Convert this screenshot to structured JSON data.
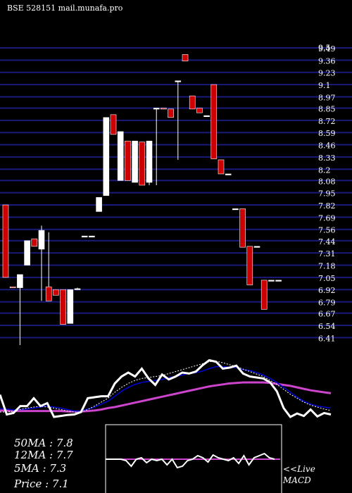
{
  "header": {
    "title": "BSE 528151 mail.munafa.pro"
  },
  "chart_data": {
    "type": "candlestick",
    "y_ticks": [
      "9.5",
      "9.49",
      "9.36",
      "9.23",
      "9.1",
      "8.97",
      "8.85",
      "8.72",
      "8.59",
      "8.46",
      "8.33",
      "8.2",
      "8.08",
      "7.95",
      "7.82",
      "7.69",
      "7.56",
      "7.44",
      "7.31",
      "7.18",
      "7.05",
      "6.92",
      "6.79",
      "6.67",
      "6.54",
      "6.41"
    ],
    "ylim": [
      6.33,
      9.55
    ],
    "colors": {
      "up": "#ffffff",
      "down": "#cc0000",
      "grid": "#1a1a7a",
      "ma_short": "#0000cc",
      "ma_long": "#cc44cc",
      "line": "#ffffff"
    },
    "candles": [
      {
        "o": 7.82,
        "h": 7.82,
        "l": 7.05,
        "c": 7.05
      },
      {
        "o": 6.95,
        "h": 6.95,
        "l": 6.94,
        "c": 6.94
      },
      {
        "o": 6.94,
        "h": 7.05,
        "l": 6.33,
        "c": 7.08
      },
      {
        "o": 7.18,
        "h": 7.44,
        "l": 7.18,
        "c": 7.44
      },
      {
        "o": 7.46,
        "h": 7.46,
        "l": 7.38,
        "c": 7.38
      },
      {
        "o": 7.35,
        "h": 7.6,
        "l": 6.8,
        "c": 7.55
      },
      {
        "o": 6.95,
        "h": 7.53,
        "l": 6.8,
        "c": 6.8
      },
      {
        "o": 6.92,
        "h": 6.92,
        "l": 6.86,
        "c": 6.86
      },
      {
        "o": 6.92,
        "h": 6.92,
        "l": 6.55,
        "c": 6.55
      },
      {
        "o": 6.56,
        "h": 6.92,
        "l": 6.56,
        "c": 6.92
      },
      {
        "o": 6.92,
        "h": 6.94,
        "l": 6.92,
        "c": 6.93
      },
      {
        "o": 7.49,
        "h": 7.49,
        "l": 7.49,
        "c": 7.49
      },
      {
        "o": 7.49,
        "h": 7.49,
        "l": 7.49,
        "c": 7.49
      },
      {
        "o": 7.75,
        "h": 7.9,
        "l": 7.75,
        "c": 7.9
      },
      {
        "o": 7.92,
        "h": 8.75,
        "l": 7.92,
        "c": 8.75
      },
      {
        "o": 8.78,
        "h": 8.78,
        "l": 8.57,
        "c": 8.57
      },
      {
        "o": 8.08,
        "h": 8.6,
        "l": 8.08,
        "c": 8.6
      },
      {
        "o": 8.5,
        "h": 8.5,
        "l": 8.08,
        "c": 8.08
      },
      {
        "o": 8.06,
        "h": 8.5,
        "l": 8.06,
        "c": 8.5
      },
      {
        "o": 8.49,
        "h": 8.49,
        "l": 8.03,
        "c": 8.03
      },
      {
        "o": 8.06,
        "h": 8.5,
        "l": 8.03,
        "c": 8.5
      },
      {
        "o": 8.85,
        "h": 8.85,
        "l": 8.03,
        "c": 8.85
      },
      {
        "o": 8.85,
        "h": 8.85,
        "l": 8.84,
        "c": 8.84
      },
      {
        "o": 8.84,
        "h": 8.84,
        "l": 8.75,
        "c": 8.75
      },
      {
        "o": 9.14,
        "h": 9.14,
        "l": 8.3,
        "c": 9.14
      },
      {
        "o": 9.42,
        "h": 9.42,
        "l": 9.35,
        "c": 9.35
      },
      {
        "o": 8.98,
        "h": 8.98,
        "l": 8.84,
        "c": 8.84
      },
      {
        "o": 8.85,
        "h": 8.85,
        "l": 8.8,
        "c": 8.8
      },
      {
        "o": 8.77,
        "h": 8.77,
        "l": 8.77,
        "c": 8.77
      },
      {
        "o": 9.1,
        "h": 9.1,
        "l": 8.31,
        "c": 8.31
      },
      {
        "o": 8.3,
        "h": 8.3,
        "l": 8.15,
        "c": 8.15
      },
      {
        "o": 8.15,
        "h": 8.15,
        "l": 8.15,
        "c": 8.15
      },
      {
        "o": 7.78,
        "h": 7.78,
        "l": 7.78,
        "c": 7.78
      },
      {
        "o": 7.78,
        "h": 7.78,
        "l": 7.37,
        "c": 7.37
      },
      {
        "o": 7.38,
        "h": 7.38,
        "l": 6.97,
        "c": 6.97
      },
      {
        "o": 7.38,
        "h": 7.38,
        "l": 7.38,
        "c": 7.38
      },
      {
        "o": 7.02,
        "h": 7.02,
        "l": 6.71,
        "c": 6.71
      },
      {
        "o": 7.02,
        "h": 7.02,
        "l": 7.02,
        "c": 7.02
      },
      {
        "o": 7.02,
        "h": 7.02,
        "l": 7.02,
        "c": 7.02
      }
    ],
    "ma_panel": {
      "price_line": [
        0.85,
        0.45,
        0.48,
        0.62,
        0.62,
        0.78,
        0.62,
        0.68,
        0.4,
        0.42,
        0.44,
        0.45,
        0.5,
        0.78,
        0.8,
        0.82,
        0.82,
        1.08,
        1.22,
        1.3,
        1.22,
        1.38,
        1.18,
        1.05,
        1.26,
        1.16,
        1.22,
        1.3,
        1.28,
        1.32,
        1.45,
        1.55,
        1.52,
        1.38,
        1.4,
        1.44,
        1.28,
        1.22,
        1.2,
        1.18,
        1.1,
        0.92,
        0.58,
        0.4,
        0.47,
        0.42,
        0.55,
        0.41,
        0.48,
        0.45
      ],
      "ma_short": [
        0.57,
        0.56,
        0.54,
        0.55,
        0.56,
        0.58,
        0.6,
        0.62,
        0.6,
        0.58,
        0.55,
        0.52,
        0.52,
        0.56,
        0.6,
        0.66,
        0.72,
        0.82,
        0.92,
        1.0,
        1.06,
        1.1,
        1.12,
        1.14,
        1.16,
        1.2,
        1.22,
        1.25,
        1.28,
        1.3,
        1.33,
        1.38,
        1.42,
        1.42,
        1.41,
        1.4,
        1.36,
        1.34,
        1.3,
        1.25,
        1.18,
        1.1,
        1.0,
        0.9,
        0.8,
        0.72,
        0.66,
        0.62,
        0.6,
        0.58
      ],
      "ma_long": [
        0.53,
        0.53,
        0.52,
        0.52,
        0.52,
        0.52,
        0.52,
        0.52,
        0.52,
        0.52,
        0.51,
        0.51,
        0.51,
        0.52,
        0.53,
        0.55,
        0.58,
        0.6,
        0.63,
        0.66,
        0.69,
        0.72,
        0.75,
        0.78,
        0.81,
        0.84,
        0.87,
        0.9,
        0.93,
        0.96,
        0.99,
        1.02,
        1.04,
        1.06,
        1.08,
        1.09,
        1.1,
        1.1,
        1.1,
        1.1,
        1.09,
        1.07,
        1.05,
        1.03,
        1.0,
        0.97,
        0.94,
        0.92,
        0.9,
        0.88
      ],
      "ma_dotted": [
        0.5,
        0.5,
        0.52,
        0.55,
        0.58,
        0.6,
        0.62,
        0.6,
        0.58,
        0.55,
        0.52,
        0.5,
        0.5,
        0.55,
        0.62,
        0.7,
        0.78,
        0.9,
        1.0,
        1.08,
        1.14,
        1.18,
        1.2,
        1.22,
        1.24,
        1.28,
        1.32,
        1.36,
        1.4,
        1.44,
        1.48,
        1.52,
        1.53,
        1.5,
        1.46,
        1.42,
        1.37,
        1.32,
        1.27,
        1.22,
        1.14,
        1.06,
        0.96,
        0.86,
        0.78,
        0.7,
        0.64,
        0.6,
        0.56,
        0.53
      ]
    },
    "macd": {
      "line": [
        0.5,
        0.5,
        0.5,
        0.5,
        0.48,
        0.4,
        0.5,
        0.52,
        0.45,
        0.5,
        0.48,
        0.5,
        0.42,
        0.5,
        0.38,
        0.4,
        0.48,
        0.5,
        0.55,
        0.52,
        0.46,
        0.56,
        0.52,
        0.5,
        0.48,
        0.52,
        0.44,
        0.55,
        0.42,
        0.52,
        0.55,
        0.58,
        0.52,
        0.5
      ],
      "signal": 0.5
    }
  },
  "ma_labels": {
    "ma50": "50MA : 7.8",
    "ma12": "12MA : 7.7",
    "ma5": "5MA : 7.3",
    "price": "Price  : 7.1"
  },
  "macd_labels": {
    "live": "<<Live",
    "macd": "MACD"
  }
}
